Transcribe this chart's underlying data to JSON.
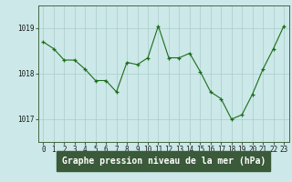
{
  "title": "Graphe pression niveau de la mer (hPa)",
  "x_values": [
    0,
    1,
    2,
    3,
    4,
    5,
    6,
    7,
    8,
    9,
    10,
    11,
    12,
    13,
    14,
    15,
    16,
    17,
    18,
    19,
    20,
    21,
    22,
    23
  ],
  "y_values": [
    1018.7,
    1018.55,
    1018.3,
    1018.3,
    1018.1,
    1017.85,
    1017.85,
    1017.6,
    1018.25,
    1018.2,
    1018.35,
    1019.05,
    1018.35,
    1018.35,
    1018.45,
    1018.05,
    1017.6,
    1017.45,
    1017.0,
    1017.1,
    1017.55,
    1018.1,
    1018.55,
    1019.05
  ],
  "line_color": "#1a6e1a",
  "marker_color": "#1a6e1a",
  "bg_color": "#cce8e8",
  "grid_color": "#aacccc",
  "label_bg_color": "#3a5a3a",
  "label_text_color": "#ffffff",
  "ylim": [
    1016.5,
    1019.5
  ],
  "yticks": [
    1017,
    1018,
    1019
  ],
  "xticks": [
    0,
    1,
    2,
    3,
    4,
    5,
    6,
    7,
    8,
    9,
    10,
    11,
    12,
    13,
    14,
    15,
    16,
    17,
    18,
    19,
    20,
    21,
    22,
    23
  ],
  "tick_fontsize": 5.5,
  "title_fontsize": 7.0
}
